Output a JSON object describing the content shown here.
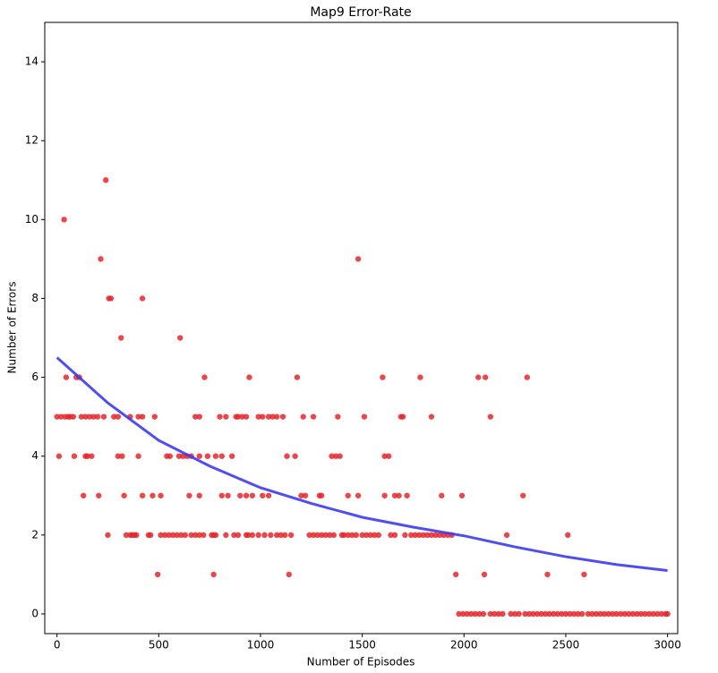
{
  "chart_data": {
    "type": "scatter",
    "title": "Map9 Error-Rate",
    "x_label": "Number of Episodes",
    "y_label": "Number of Errors",
    "xlim": [
      -60,
      3050
    ],
    "ylim": [
      -0.5,
      15
    ],
    "xticks": [
      0,
      500,
      1000,
      1500,
      2000,
      2500,
      3000
    ],
    "yticks": [
      0,
      2,
      4,
      6,
      8,
      10,
      12,
      14
    ],
    "series": [
      {
        "type": "scatter",
        "color": "#e8262a",
        "x": [
          35,
          240,
          215,
          1480,
          255,
          265,
          420,
          315,
          605,
          45,
          95,
          110,
          725,
          945,
          1180,
          1600,
          1785,
          2070,
          2105,
          2310,
          0,
          20,
          40,
          55,
          65,
          80,
          120,
          140,
          160,
          180,
          200,
          230,
          280,
          300,
          360,
          400,
          420,
          480,
          680,
          700,
          800,
          830,
          880,
          890,
          910,
          930,
          990,
          1010,
          1040,
          1060,
          1080,
          1110,
          1210,
          1260,
          1380,
          1510,
          1690,
          1700,
          1840,
          2130,
          10,
          85,
          140,
          150,
          170,
          300,
          320,
          400,
          540,
          555,
          600,
          620,
          640,
          660,
          700,
          740,
          780,
          810,
          860,
          1130,
          1170,
          1350,
          1370,
          1390,
          1610,
          1630,
          130,
          205,
          330,
          420,
          470,
          510,
          650,
          700,
          810,
          840,
          900,
          930,
          960,
          1010,
          1040,
          1200,
          1220,
          1290,
          1300,
          1430,
          1480,
          1610,
          1660,
          1680,
          1720,
          1890,
          1990,
          2290,
          250,
          340,
          360,
          370,
          380,
          390,
          450,
          460,
          510,
          530,
          550,
          570,
          590,
          610,
          630,
          660,
          680,
          700,
          720,
          760,
          770,
          780,
          830,
          870,
          890,
          930,
          940,
          960,
          990,
          1020,
          1050,
          1080,
          1100,
          1120,
          1150,
          1240,
          1260,
          1280,
          1300,
          1320,
          1340,
          1360,
          1400,
          1410,
          1430,
          1450,
          1470,
          1500,
          1520,
          1540,
          1560,
          1580,
          1640,
          1660,
          1710,
          1740,
          1760,
          1780,
          1800,
          1820,
          1840,
          1860,
          1880,
          1900,
          1920,
          1940,
          2210,
          2510,
          495,
          770,
          1140,
          1960,
          2100,
          2410,
          2590,
          1975,
          1995,
          2015,
          2035,
          2055,
          2075,
          2095,
          2130,
          2150,
          2170,
          2190,
          2230,
          2250,
          2270,
          2300,
          2320,
          2340,
          2360,
          2380,
          2400,
          2420,
          2440,
          2460,
          2480,
          2500,
          2520,
          2540,
          2560,
          2580,
          2610,
          2630,
          2650,
          2670,
          2690,
          2710,
          2730,
          2750,
          2770,
          2790,
          2810,
          2830,
          2850,
          2870,
          2890,
          2910,
          2930,
          2950,
          2970,
          2990,
          3000
        ],
        "values": [
          10,
          11,
          9,
          9,
          8,
          8,
          8,
          7,
          7,
          6,
          6,
          6,
          6,
          6,
          6,
          6,
          6,
          6,
          6,
          6,
          5,
          5,
          5,
          5,
          5,
          5,
          5,
          5,
          5,
          5,
          5,
          5,
          5,
          5,
          5,
          5,
          5,
          5,
          5,
          5,
          5,
          5,
          5,
          5,
          5,
          5,
          5,
          5,
          5,
          5,
          5,
          5,
          5,
          5,
          5,
          5,
          5,
          5,
          5,
          5,
          4,
          4,
          4,
          4,
          4,
          4,
          4,
          4,
          4,
          4,
          4,
          4,
          4,
          4,
          4,
          4,
          4,
          4,
          4,
          4,
          4,
          4,
          4,
          4,
          4,
          4,
          3,
          3,
          3,
          3,
          3,
          3,
          3,
          3,
          3,
          3,
          3,
          3,
          3,
          3,
          3,
          3,
          3,
          3,
          3,
          3,
          3,
          3,
          3,
          3,
          3,
          3,
          3,
          3,
          2,
          2,
          2,
          2,
          2,
          2,
          2,
          2,
          2,
          2,
          2,
          2,
          2,
          2,
          2,
          2,
          2,
          2,
          2,
          2,
          2,
          2,
          2,
          2,
          2,
          2,
          2,
          2,
          2,
          2,
          2,
          2,
          2,
          2,
          2,
          2,
          2,
          2,
          2,
          2,
          2,
          2,
          2,
          2,
          2,
          2,
          2,
          2,
          2,
          2,
          2,
          2,
          2,
          2,
          2,
          2,
          2,
          2,
          2,
          2,
          2,
          2,
          2,
          2,
          2,
          2,
          2,
          2,
          1,
          1,
          1,
          1,
          1,
          1,
          1,
          0,
          0,
          0,
          0,
          0,
          0,
          0,
          0,
          0,
          0,
          0,
          0,
          0,
          0,
          0,
          0,
          0,
          0,
          0,
          0,
          0,
          0,
          0,
          0,
          0,
          0,
          0,
          0,
          0,
          0,
          0,
          0,
          0,
          0,
          0,
          0,
          0,
          0,
          0,
          0,
          0,
          0,
          0,
          0,
          0,
          0,
          0,
          0,
          0,
          0
        ]
      },
      {
        "type": "line",
        "color": "#3c3cf0",
        "x": [
          0,
          250,
          500,
          750,
          1000,
          1250,
          1500,
          1750,
          2000,
          2250,
          2500,
          2750,
          3000
        ],
        "values": [
          6.5,
          5.35,
          4.4,
          3.75,
          3.2,
          2.8,
          2.45,
          2.2,
          1.98,
          1.7,
          1.45,
          1.25,
          1.1
        ]
      }
    ]
  }
}
